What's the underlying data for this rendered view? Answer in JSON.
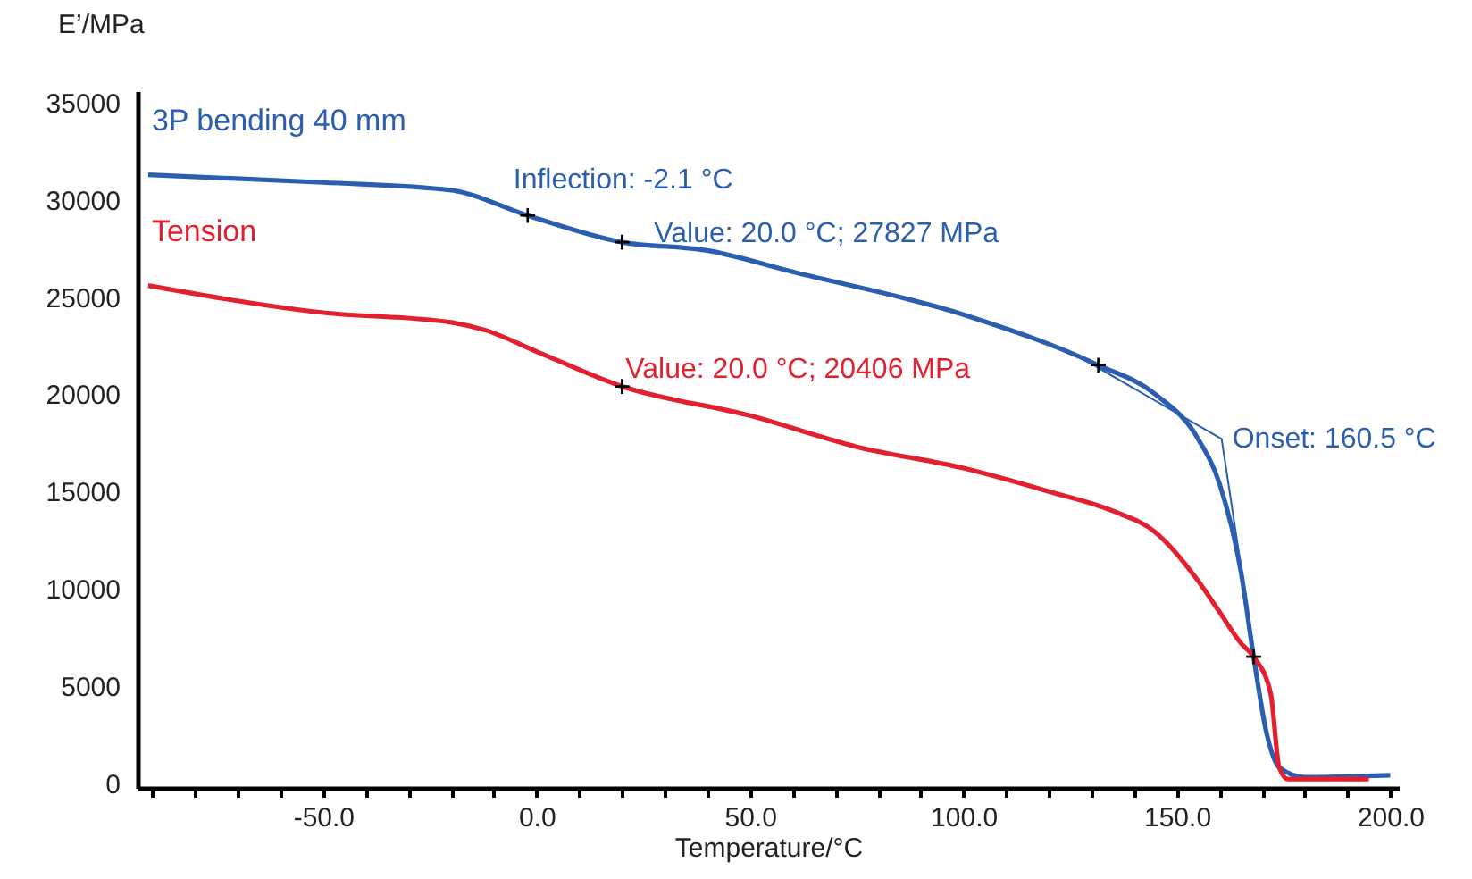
{
  "chart_data": {
    "type": "line",
    "xlabel": "Temperature/°C",
    "ylabel": "E’/MPa",
    "xlim": [
      -93.5,
      202
    ],
    "ylim": [
      -250,
      35600
    ],
    "xticks": [
      {
        "value": -90,
        "label": null
      },
      {
        "value": -80,
        "label": null
      },
      {
        "value": -70,
        "label": null
      },
      {
        "value": -60,
        "label": null
      },
      {
        "value": -50,
        "label": "-50.0"
      },
      {
        "value": -40,
        "label": null
      },
      {
        "value": -30,
        "label": null
      },
      {
        "value": -20,
        "label": null
      },
      {
        "value": -10,
        "label": null
      },
      {
        "value": 0,
        "label": "0.0"
      },
      {
        "value": 10,
        "label": null
      },
      {
        "value": 20,
        "label": null
      },
      {
        "value": 30,
        "label": null
      },
      {
        "value": 40,
        "label": null
      },
      {
        "value": 50,
        "label": "50.0"
      },
      {
        "value": 60,
        "label": null
      },
      {
        "value": 70,
        "label": null
      },
      {
        "value": 80,
        "label": null
      },
      {
        "value": 90,
        "label": null
      },
      {
        "value": 100,
        "label": "100.0"
      },
      {
        "value": 110,
        "label": null
      },
      {
        "value": 120,
        "label": null
      },
      {
        "value": 130,
        "label": null
      },
      {
        "value": 140,
        "label": null
      },
      {
        "value": 150,
        "label": "150.0"
      },
      {
        "value": 160,
        "label": null
      },
      {
        "value": 170,
        "label": null
      },
      {
        "value": 180,
        "label": null
      },
      {
        "value": 190,
        "label": null
      },
      {
        "value": 200,
        "label": "200.0"
      }
    ],
    "yticks": [
      0,
      5000,
      10000,
      15000,
      20000,
      25000,
      30000,
      35000
    ],
    "grid": false,
    "series": [
      {
        "name": "3P bending 40 mm",
        "color": "#2b5eaf",
        "type": "line",
        "x": [
          -91,
          -50,
          -20,
          -2.1,
          20,
          40,
          60,
          100,
          131.6,
          145,
          155,
          160,
          165,
          168,
          171,
          174,
          180,
          200
        ],
        "values": [
          31300,
          30900,
          30500,
          29200,
          27827,
          27400,
          26300,
          24100,
          21500,
          20000,
          17700,
          15400,
          10900,
          6500,
          2600,
          800,
          300,
          400
        ]
      },
      {
        "name": "Tension",
        "color": "#e3202f",
        "type": "line",
        "x": [
          -91,
          -50,
          -20,
          -12,
          0,
          20,
          50,
          75,
          100,
          120,
          135,
          145,
          155,
          160,
          165,
          168,
          172,
          174,
          176,
          195
        ],
        "values": [
          25600,
          24200,
          23700,
          23300,
          22200,
          20406,
          18900,
          17300,
          16200,
          15000,
          14000,
          12900,
          10400,
          8800,
          7200,
          6500,
          4600,
          800,
          200,
          200
        ]
      },
      {
        "color": "#2b5eaf",
        "type": "line",
        "x": [
          125,
          160.5,
          168.3
        ],
        "values": [
          22200,
          17700,
          6400
        ]
      },
      {
        "color": "#000000",
        "type": "scatter",
        "marker": "cross",
        "x": [
          -2.1,
          20,
          20,
          131.6,
          168
        ],
        "values": [
          29200,
          27827,
          20406,
          21500,
          6500
        ]
      }
    ],
    "annotations": [
      {
        "text": "Inflection: -2.1 °C",
        "x": -2.1,
        "y": 29200
      },
      {
        "text": "Value: 20.0 °C; 27827 MPa",
        "x": 20,
        "y": 27827
      },
      {
        "text": "Value: 20.0 °C; 20406 MPa",
        "x": 20,
        "y": 20406
      },
      {
        "text": "Onset: 160.5 °C",
        "x": 160.5,
        "y": 17700
      }
    ]
  }
}
